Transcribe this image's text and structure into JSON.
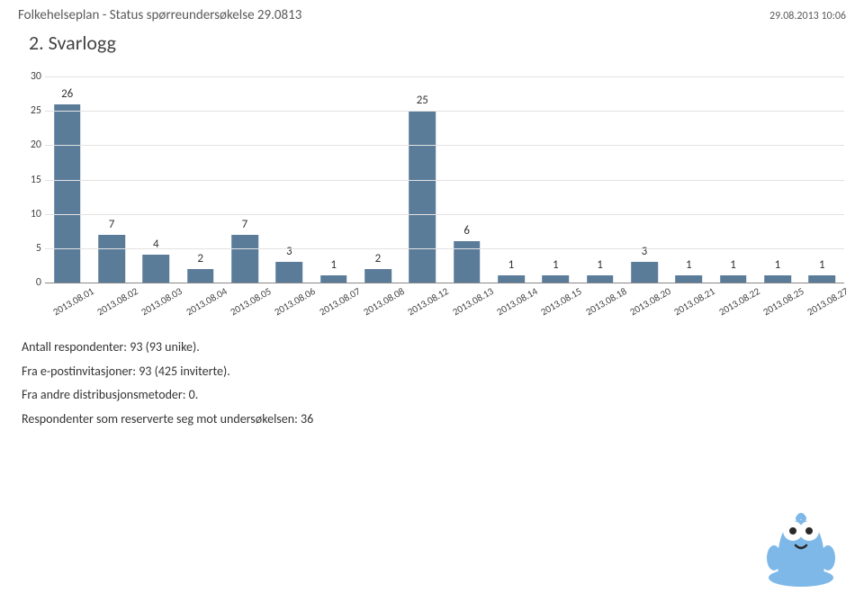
{
  "header": {
    "title": "Folkehelseplan - Status spørreundersøkelse 29.0813",
    "datetime": "29.08.2013 10:06"
  },
  "section": {
    "title": "2. Svarlogg"
  },
  "chart": {
    "type": "bar",
    "ylim": [
      0,
      30
    ],
    "ytick_step": 5,
    "yticks": [
      0,
      5,
      10,
      15,
      20,
      25,
      30
    ],
    "categories": [
      "2013.08.01",
      "2013.08.02",
      "2013.08.03",
      "2013.08.04",
      "2013.08.05",
      "2013.08.06",
      "2013.08.07",
      "2013.08.08",
      "2013.08.12",
      "2013.08.13",
      "2013.08.14",
      "2013.08.15",
      "2013.08.18",
      "2013.08.20",
      "2013.08.21",
      "2013.08.22",
      "2013.08.25",
      "2013.08.27"
    ],
    "values": [
      26,
      7,
      4,
      2,
      7,
      3,
      1,
      2,
      25,
      6,
      1,
      1,
      1,
      3,
      1,
      1,
      1,
      1
    ],
    "bar_color": "#5b7c99",
    "background_color": "#ffffff",
    "grid_color": "#e2e2e2",
    "axis_color": "#888888",
    "bar_width_ratio": 0.6,
    "value_label_fontsize": 13,
    "tick_label_fontsize": 11,
    "xlabel_rotation_deg": -30
  },
  "notes": {
    "line1": "Antall respondenter: 93 (93 unike).",
    "line2": "Fra e-postinvitasjoner: 93 (425 inviterte).",
    "line3": "Fra andre distribusjonsmetoder: 0.",
    "line4": "Respondenter som reserverte seg mot undersøkelsen: 36"
  },
  "mascot": {
    "body_color": "#7db8e8",
    "eye_white": "#ffffff",
    "eye_pupil": "#2a2a2a",
    "mouth_color": "#2a2a2a"
  }
}
